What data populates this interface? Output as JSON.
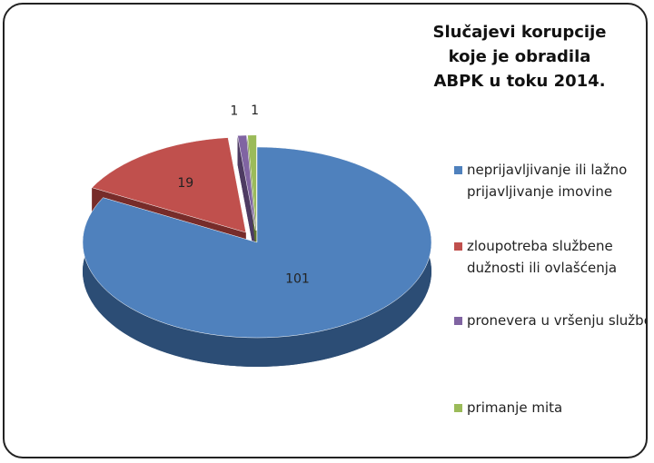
{
  "chart_data": {
    "type": "pie",
    "title": "Slučajevi korupcije koje je obradila ABPK u toku 2014.",
    "categories": [
      "neprijavljivanje ili lažno prijavljivanje imovine",
      "zloupotreba službene dužnosti ili ovlašćenja",
      "pronevera u vršenju službe",
      "primanje mita"
    ],
    "values": [
      101,
      19,
      1,
      1
    ],
    "colors": [
      "#4f81bd",
      "#c0504d",
      "#8064a2",
      "#9bbb59"
    ],
    "side_colors": [
      "#2c4d75",
      "#772c2a",
      "#4d3b62",
      "#5f7530"
    ],
    "legend": "right"
  }
}
